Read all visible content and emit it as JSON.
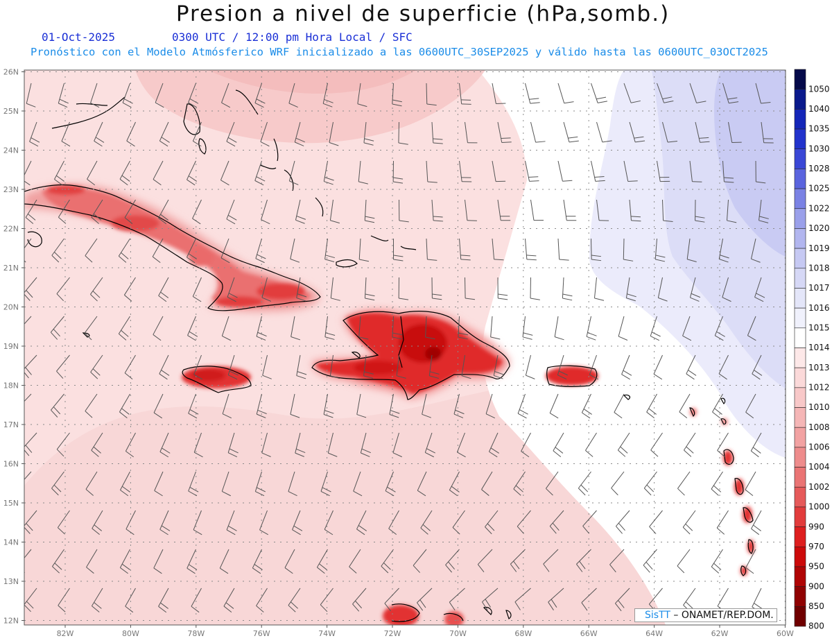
{
  "header": {
    "title": "Presion a nivel de superficie (hPa,somb.)",
    "date": "01-Oct-2025",
    "valid_time": "0300 UTC / 12:00 pm Hora Local / SFC",
    "forecast_info": "Pronóstico con el Modelo Atmósferico WRF inicializado a las 0600UTC_30SEP2025 y válido hasta las  0600UTC_03OCT2025"
  },
  "axes": {
    "x_labels": [
      "82W",
      "80W",
      "78W",
      "76W",
      "74W",
      "72W",
      "70W",
      "68W",
      "66W",
      "64W",
      "62W",
      "60W"
    ],
    "y_labels": [
      "26N",
      "25N",
      "24N",
      "23N",
      "22N",
      "21N",
      "20N",
      "19N",
      "18N",
      "17N",
      "16N",
      "15N",
      "14N",
      "13N",
      "12N"
    ]
  },
  "colorbar": {
    "levels": [
      "1050",
      "1040",
      "1035",
      "1030",
      "1028",
      "1025",
      "1022",
      "1020",
      "1019",
      "1018",
      "1017",
      "1016",
      "1015",
      "1014",
      "1013",
      "1012",
      "1010",
      "1008",
      "1006",
      "1004",
      "1002",
      "1000",
      "990",
      "970",
      "950",
      "900",
      "850",
      "800"
    ],
    "colors": [
      "#050a4a",
      "#0a1a8c",
      "#1426b8",
      "#2233cc",
      "#3a47d6",
      "#5a64de",
      "#7a82e4",
      "#9aa0ea",
      "#b2b6ef",
      "#c6c9f3",
      "#d6d8f6",
      "#e4e6f9",
      "#f0f1fc",
      "#ffffff",
      "#fde8e8",
      "#fbd9d9",
      "#f8c8c8",
      "#f5b6b6",
      "#f2a2a2",
      "#ee8c8c",
      "#ea7474",
      "#e65a5a",
      "#e23c3c",
      "#de1f1f",
      "#cc0a0a",
      "#b00505",
      "#900202",
      "#700000"
    ]
  },
  "credit": {
    "brand": "SisTT",
    "org": "– ONAMET/REP.DOM."
  }
}
